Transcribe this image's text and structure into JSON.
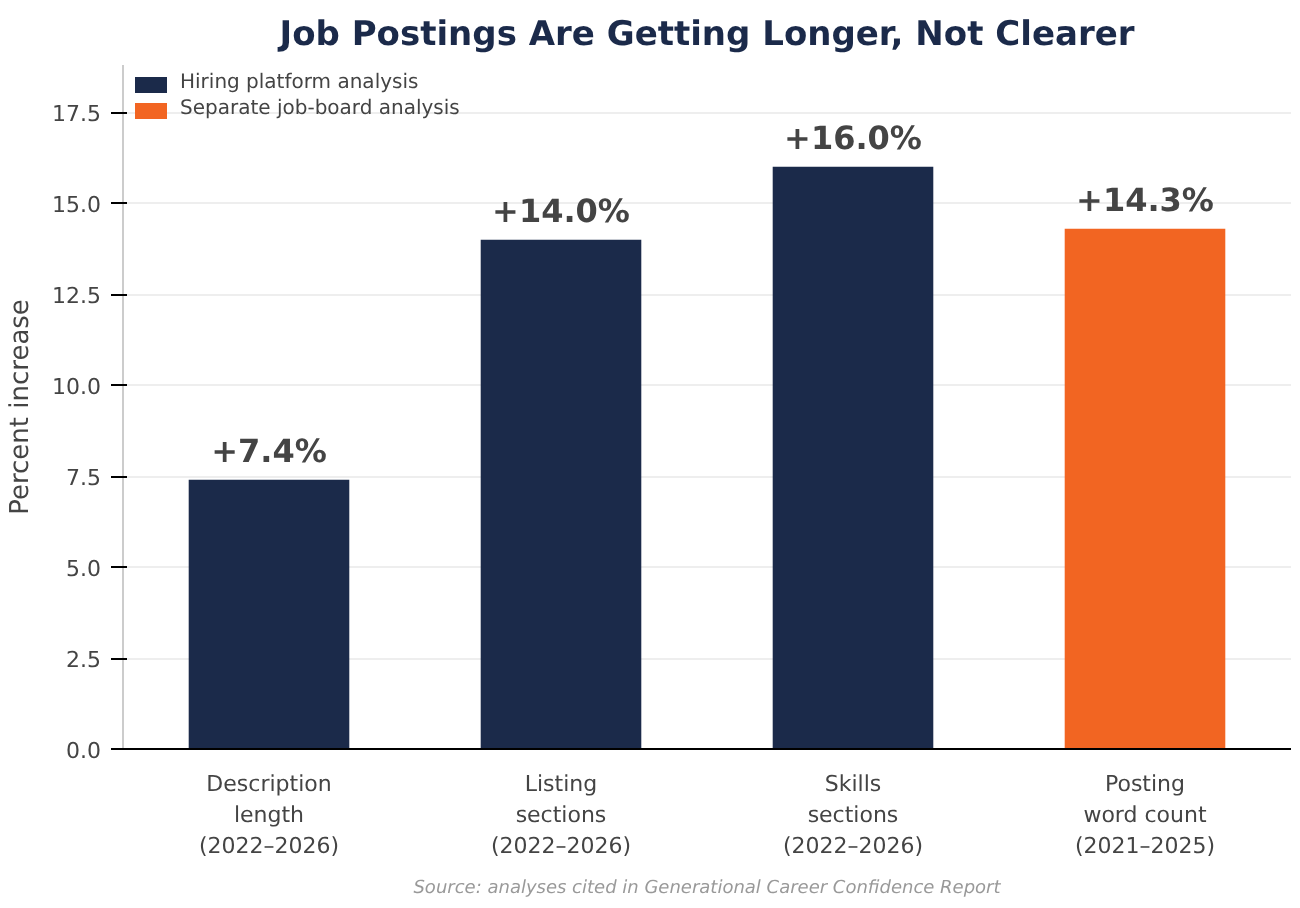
{
  "chart_data": {
    "type": "bar",
    "title": "Job Postings Are Getting Longer, Not Clearer",
    "ylabel": "Percent increase",
    "categories": [
      "Description\nlength\n(2022–2026)",
      "Listing\nsections\n(2022–2026)",
      "Skills\nsections\n(2022–2026)",
      "Posting\nword count\n(2021–2025)"
    ],
    "series": [
      {
        "name": "Hiring platform analysis",
        "color": "#1b2a4a",
        "values": [
          7.4,
          14.0,
          16.0,
          null
        ],
        "value_labels": [
          "+7.4%",
          "+14.0%",
          "+16.0%",
          null
        ]
      },
      {
        "name": "Separate job-board analysis",
        "color": "#f26522",
        "values": [
          null,
          null,
          null,
          14.3
        ],
        "value_labels": [
          null,
          null,
          null,
          "+14.3%"
        ]
      }
    ],
    "ylim": [
      0,
      18.8
    ],
    "yticks": [
      {
        "value": 0,
        "label": "0.0"
      },
      {
        "value": 2.5,
        "label": "2.5"
      },
      {
        "value": 5,
        "label": "5.0"
      },
      {
        "value": 7.5,
        "label": "7.5"
      },
      {
        "value": 10,
        "label": "10.0"
      },
      {
        "value": 12.5,
        "label": "12.5"
      },
      {
        "value": 15,
        "label": "15.0"
      },
      {
        "value": 17.5,
        "label": "17.5"
      }
    ],
    "grid": "y",
    "legend": "top left",
    "annotations": [
      "Source: analyses cited in Generational Career Confidence Report"
    ]
  }
}
